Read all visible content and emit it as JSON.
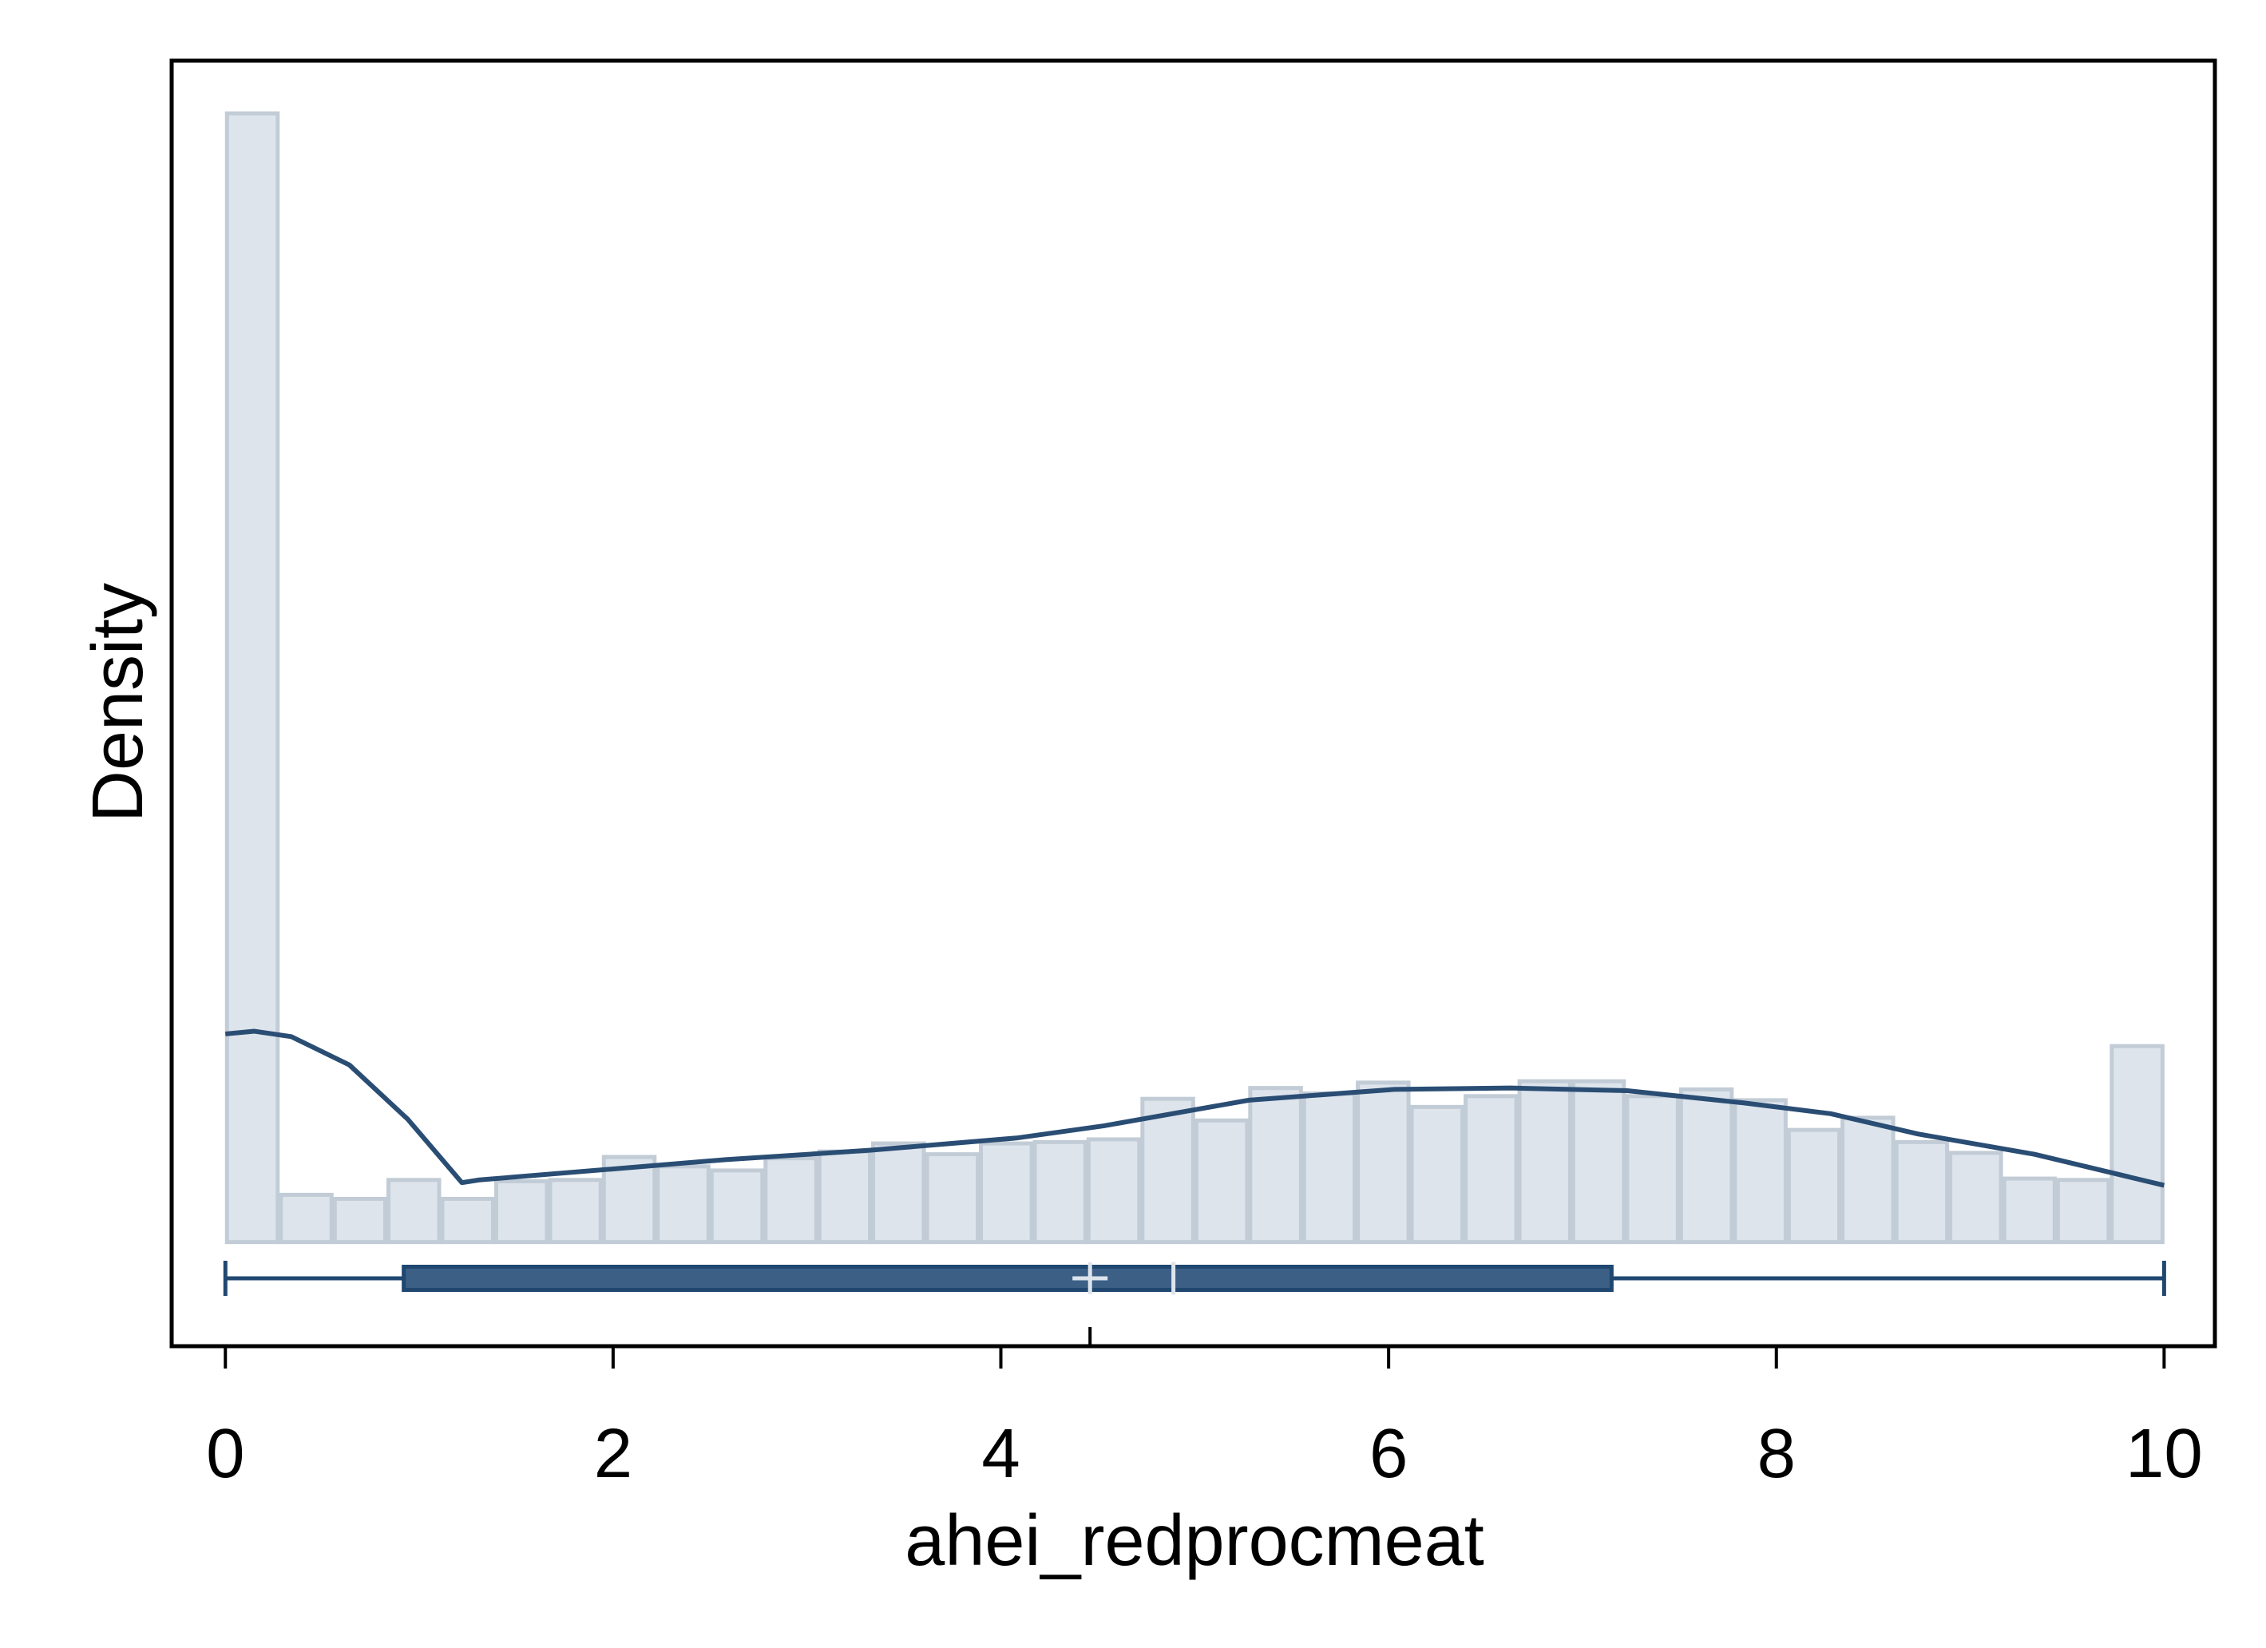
{
  "chart_data": {
    "type": "histogram",
    "xlabel": "ahei_redprocmeat",
    "ylabel": "Density",
    "bins": [
      0,
      0.278,
      0.556,
      0.833,
      1.111,
      1.389,
      1.667,
      1.944,
      2.222,
      2.5,
      2.778,
      3.056,
      3.333,
      3.611,
      3.889,
      4.167,
      4.444,
      4.722,
      5,
      5.278,
      5.556,
      5.833,
      6.111,
      6.389,
      6.667,
      6.944,
      7.222,
      7.5,
      7.778,
      8.056,
      8.333,
      8.611,
      8.889,
      9.167,
      9.444,
      9.722,
      10
    ],
    "values": [
      0.835,
      0.035,
      0.032,
      0.046,
      0.032,
      0.045,
      0.046,
      0.063,
      0.056,
      0.053,
      0.062,
      0.067,
      0.073,
      0.065,
      0.073,
      0.074,
      0.076,
      0.106,
      0.09,
      0.114,
      0.11,
      0.118,
      0.1,
      0.108,
      0.119,
      0.119,
      0.108,
      0.113,
      0.105,
      0.083,
      0.092,
      0.074,
      0.066,
      0.047,
      0.046,
      0.145
    ],
    "color": "#dde4ec",
    "edge_color": "#c2ccd6",
    "density": {
      "x": [
        0,
        0.15,
        0.34,
        0.64,
        0.94,
        1.22,
        1.31,
        1.99,
        2.58,
        3.33,
        4.08,
        4.53,
        5.28,
        6.03,
        6.63,
        7.23,
        7.83,
        8.28,
        8.73,
        9.33,
        10
      ],
      "y": [
        0.154,
        0.156,
        0.152,
        0.131,
        0.091,
        0.044,
        0.046,
        0.054,
        0.061,
        0.068,
        0.077,
        0.086,
        0.105,
        0.113,
        0.114,
        0.112,
        0.103,
        0.095,
        0.08,
        0.065,
        0.042
      ],
      "color": "#2a4d74"
    },
    "boxplot": {
      "whisker_low": 0,
      "q1": 0.92,
      "median": 4.89,
      "q3": 7.15,
      "whisker_high": 10,
      "mean": 4.46,
      "color": "#3c5f86"
    },
    "xlim": [
      -0.277,
      10.262
    ],
    "xticks": [
      0,
      2,
      4,
      6,
      8,
      10
    ],
    "ylim": [
      -0.077,
      0.874
    ]
  }
}
